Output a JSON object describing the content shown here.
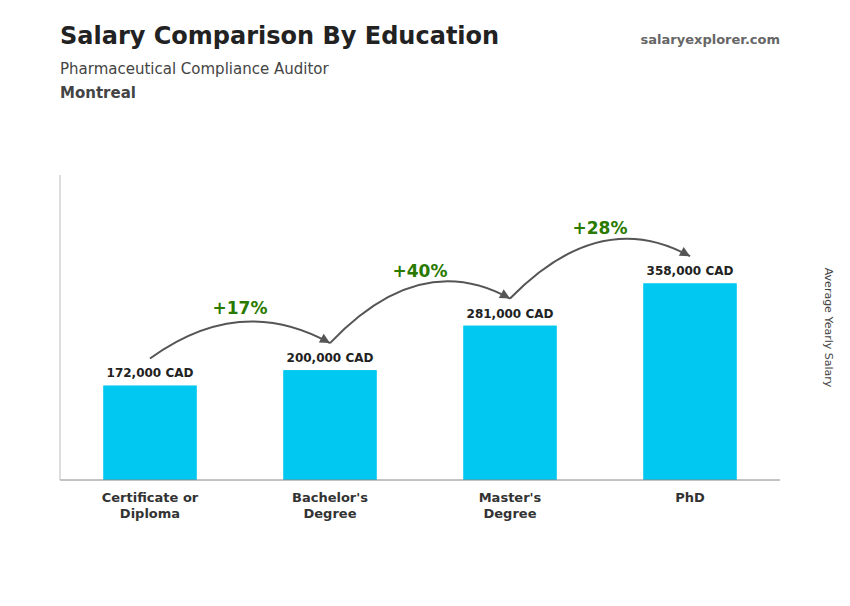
{
  "chart_data": {
    "type": "bar",
    "title": "Salary Comparison By Education",
    "subtitle": "Pharmaceutical Compliance Auditor",
    "city": "Montreal",
    "watermark": [
      "salary",
      "explorer",
      ".com"
    ],
    "ylabel": "Average Yearly Salary",
    "categories": [
      "Certificate or\nDiploma",
      "Bachelor's\nDegree",
      "Master's\nDegree",
      "PhD"
    ],
    "values": [
      172000,
      200000,
      281000,
      358000
    ],
    "value_labels": [
      "172,000 CAD",
      "200,000 CAD",
      "281,000 CAD",
      "358,000 CAD"
    ],
    "annotations": [
      "+17%",
      "+40%",
      "+28%"
    ],
    "color": "#00c8f0",
    "ylim": [
      0,
      554900
    ],
    "tick_labels": "x",
    "data_labels": true,
    "grid": false
  }
}
